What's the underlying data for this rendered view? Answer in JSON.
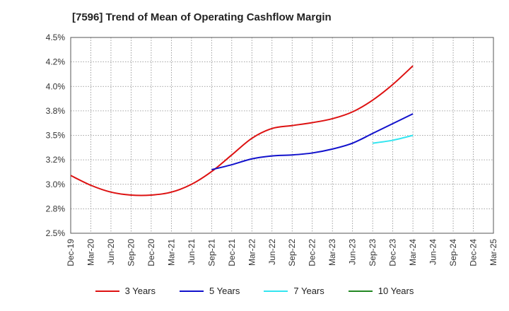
{
  "chart_data": {
    "type": "line",
    "title": "[7596]  Trend of Mean of Operating Cashflow Margin",
    "categories": [
      "Dec-19",
      "Mar-20",
      "Jun-20",
      "Sep-20",
      "Dec-20",
      "Mar-21",
      "Jun-21",
      "Sep-21",
      "Dec-21",
      "Mar-22",
      "Jun-22",
      "Sep-22",
      "Dec-22",
      "Mar-23",
      "Jun-23",
      "Sep-23",
      "Dec-23",
      "Mar-24",
      "Jun-24",
      "Sep-24",
      "Dec-24",
      "Mar-25"
    ],
    "y_ticks": [
      "4.5%",
      "4.2%",
      "4.0%",
      "3.8%",
      "3.5%",
      "3.2%",
      "3.0%",
      "2.8%",
      "2.5%"
    ],
    "ylim": [
      2.5,
      4.5
    ],
    "grid": true,
    "legend_position": "bottom",
    "series": [
      {
        "name": "3 Years",
        "color": "#dd1111",
        "values": [
          3.09,
          2.99,
          2.92,
          2.89,
          2.89,
          2.92,
          3.0,
          3.13,
          3.3,
          3.47,
          3.57,
          3.6,
          3.63,
          3.67,
          3.74,
          3.86,
          4.02,
          4.21,
          null,
          null,
          null,
          null
        ]
      },
      {
        "name": "5 Years",
        "color": "#1111cc",
        "values": [
          null,
          null,
          null,
          null,
          null,
          null,
          null,
          3.15,
          3.2,
          3.26,
          3.29,
          3.3,
          3.32,
          3.36,
          3.42,
          3.52,
          3.62,
          3.72,
          null,
          null,
          null,
          null
        ]
      },
      {
        "name": "7 Years",
        "color": "#33e5f0",
        "values": [
          null,
          null,
          null,
          null,
          null,
          null,
          null,
          null,
          null,
          null,
          null,
          null,
          null,
          null,
          null,
          3.42,
          3.45,
          3.5,
          null,
          null,
          null,
          null
        ]
      },
      {
        "name": "10 Years",
        "color": "#228822",
        "values": [
          null,
          null,
          null,
          null,
          null,
          null,
          null,
          null,
          null,
          null,
          null,
          null,
          null,
          null,
          null,
          null,
          null,
          null,
          null,
          null,
          null,
          null
        ]
      }
    ]
  }
}
